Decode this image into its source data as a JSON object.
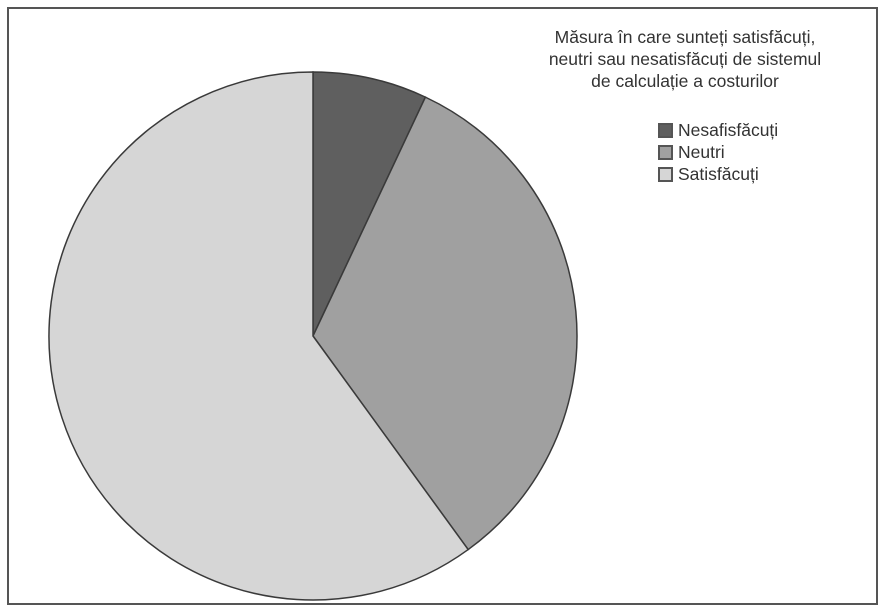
{
  "chart_data": {
    "type": "pie",
    "title_lines": [
      "Măsura în care sunteți satisfăcuți,",
      "neutri sau nesatisfăcuți de sistemul",
      "de calculație a costurilor"
    ],
    "legend_position": "top-right",
    "categories": [
      "Nesafisfăcuți",
      "Neutri",
      "Satisfăcuți"
    ],
    "values": [
      7,
      33,
      60
    ],
    "colors": [
      "#5f5f5f",
      "#a0a0a0",
      "#d6d6d6"
    ],
    "start_angle": "12 o'clock",
    "direction": "clockwise"
  }
}
